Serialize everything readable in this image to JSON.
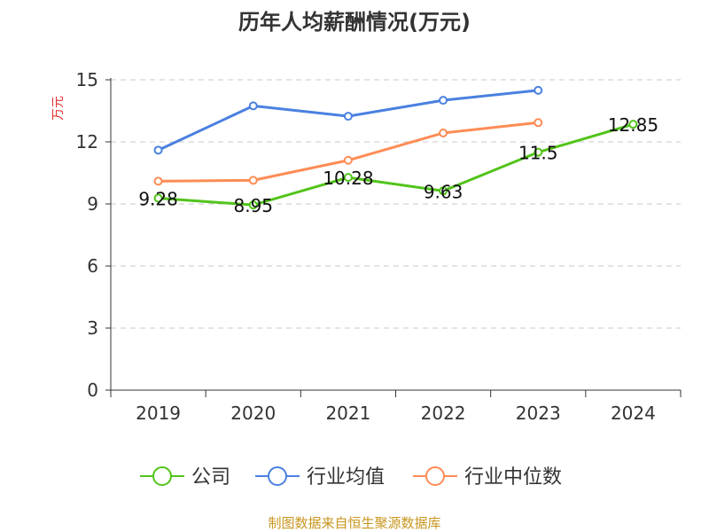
{
  "chart_data": {
    "type": "line",
    "title": "历年人均薪酬情况(万元)",
    "ylabel": "万元",
    "xlabel": "",
    "categories": [
      "2019",
      "2020",
      "2021",
      "2022",
      "2023",
      "2024"
    ],
    "ylim": [
      0,
      15
    ],
    "yticks": [
      "0",
      "3",
      "6",
      "9",
      "12",
      "15"
    ],
    "grid": true,
    "legend_position": "bottom",
    "series": [
      {
        "name": "公司",
        "color": "#52c41a",
        "values": [
          9.28,
          8.95,
          10.28,
          9.63,
          11.5,
          12.85
        ],
        "labels": [
          "9.28",
          "8.95",
          "10.28",
          "9.63",
          "11.5",
          "12.85"
        ]
      },
      {
        "name": "行业均值",
        "color": "#4a80e0",
        "values": [
          11.6,
          13.74,
          13.24,
          14.01,
          14.49,
          null
        ]
      },
      {
        "name": "行业中位数",
        "color": "#ff8c55",
        "values": [
          10.1,
          10.14,
          11.11,
          12.43,
          12.93,
          null
        ]
      }
    ]
  },
  "source": "制图数据来自恒生聚源数据库"
}
